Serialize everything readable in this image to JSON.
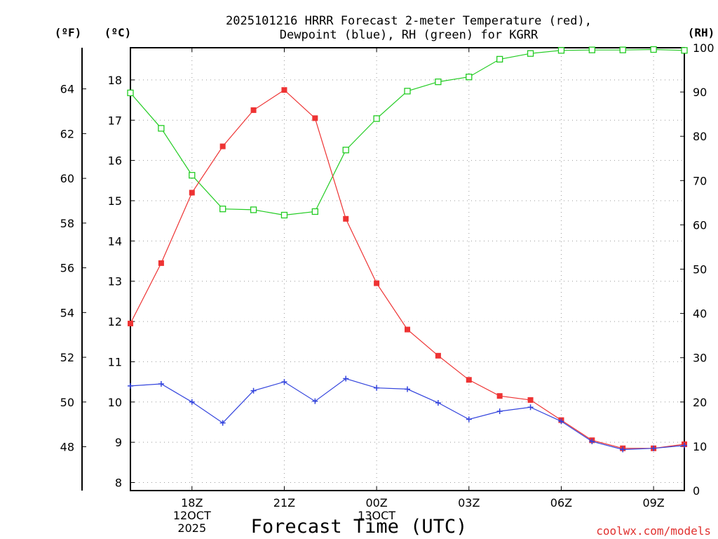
{
  "chart_data": {
    "type": "line",
    "title_lines": [
      "2025101216 HRRR Forecast 2-meter Temperature (red),",
      "Dewpoint (blue), RH (green) for KGRR"
    ],
    "xlabel": "Forecast Time (UTC)",
    "units": {
      "fahrenheit": "(ºF)",
      "celsius": "(ºC)",
      "rh": "(RH)"
    },
    "credit": "coolwx.com/models",
    "x_hours": [
      16,
      17,
      18,
      19,
      20,
      21,
      22,
      23,
      24,
      25,
      26,
      27,
      28,
      29,
      30,
      31,
      32,
      33,
      34
    ],
    "xlim": [
      16,
      34
    ],
    "x_ticks": [
      {
        "hour": 18,
        "lines": [
          "18Z",
          "12OCT",
          "2025"
        ]
      },
      {
        "hour": 21,
        "lines": [
          "21Z"
        ]
      },
      {
        "hour": 24,
        "lines": [
          "00Z",
          "13OCT"
        ]
      },
      {
        "hour": 27,
        "lines": [
          "03Z"
        ]
      },
      {
        "hour": 30,
        "lines": [
          "06Z"
        ]
      },
      {
        "hour": 33,
        "lines": [
          "09Z"
        ]
      }
    ],
    "y_celsius": {
      "lim": [
        7.8,
        18.8
      ],
      "ticks": [
        8,
        9,
        10,
        11,
        12,
        13,
        14,
        15,
        16,
        17,
        18
      ]
    },
    "y_fahrenheit": {
      "lim": [
        46.04,
        65.84
      ],
      "ticks": [
        48,
        50,
        52,
        54,
        56,
        58,
        60,
        62,
        64
      ]
    },
    "y_rh": {
      "lim": [
        0,
        100
      ],
      "ticks": [
        0,
        10,
        20,
        30,
        40,
        50,
        60,
        70,
        80,
        90,
        100
      ]
    },
    "grid": true,
    "series": [
      {
        "name": "Temperature",
        "axis": "celsius",
        "color": "#ee3333",
        "marker": "filled-square",
        "values": [
          11.95,
          13.45,
          15.2,
          16.35,
          17.25,
          17.75,
          17.05,
          14.55,
          12.95,
          11.8,
          11.15,
          10.55,
          10.15,
          10.05,
          9.55,
          9.05,
          8.85,
          8.85,
          8.95
        ]
      },
      {
        "name": "Dewpoint",
        "axis": "celsius",
        "color": "#3344dd",
        "marker": "plus",
        "values": [
          10.4,
          10.45,
          10.0,
          9.48,
          10.28,
          10.5,
          10.02,
          10.58,
          10.35,
          10.32,
          9.98,
          9.57,
          9.77,
          9.87,
          9.52,
          9.02,
          8.82,
          8.85,
          8.92
        ]
      },
      {
        "name": "RH",
        "axis": "rh",
        "color": "#22cc22",
        "marker": "open-square",
        "values": [
          89.8,
          81.8,
          71.2,
          63.6,
          63.4,
          62.2,
          63.0,
          76.9,
          84.0,
          90.2,
          92.3,
          93.4,
          97.4,
          98.7,
          99.4,
          99.5,
          99.5,
          99.6,
          99.4
        ]
      }
    ]
  }
}
